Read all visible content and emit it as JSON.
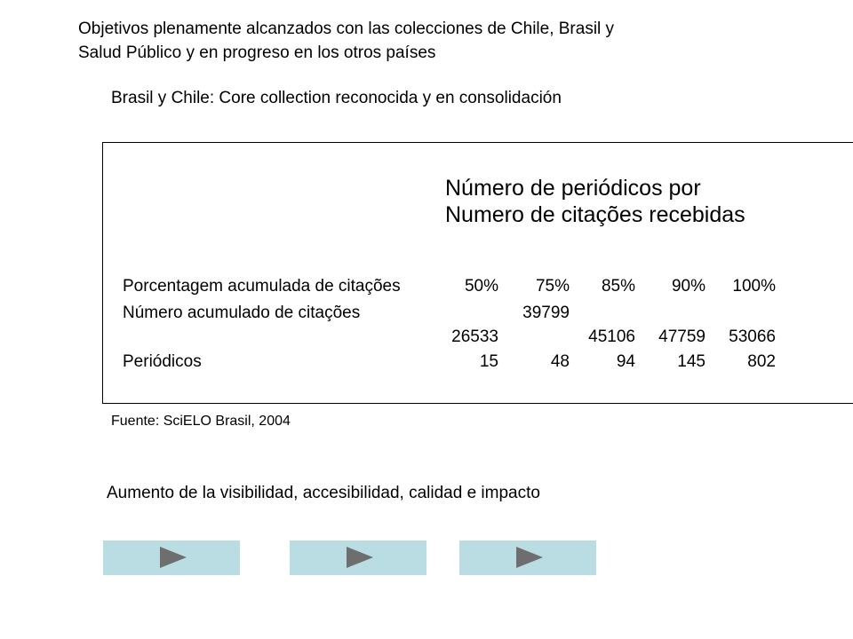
{
  "intro": {
    "line1": "Objetivos plenamente alcanzados con las colecciones de Chile, Brasil y",
    "line2": "Salud Público y en progreso en los otros países"
  },
  "subtitle": "Brasil y Chile: Core collection reconocida y en consolidación",
  "table": {
    "title_line1": "Número de periódicos por",
    "title_line2": "Numero de citações recebidas",
    "rows": [
      {
        "label": "Porcentagem acumulada de citações",
        "values": [
          "50%",
          "75%",
          "85%",
          "90%",
          "100%"
        ]
      },
      {
        "label": "Número acumulado de citações",
        "values": [
          "",
          "39799",
          "",
          "",
          ""
        ]
      },
      {
        "label": "",
        "values": [
          "26533",
          "",
          "45106",
          "47759",
          "53066"
        ]
      },
      {
        "label": "Periódicos",
        "values": [
          "15",
          "48",
          "94",
          "145",
          "802"
        ]
      }
    ]
  },
  "source": "Fuente: SciELO Brasil, 2004",
  "conclusion": "Aumento de la visibilidad, accesibilidad, calidad e impacto",
  "nav_buttons": [
    {
      "icon": "play-arrow-icon"
    },
    {
      "icon": "play-arrow-icon"
    },
    {
      "icon": "play-arrow-icon"
    }
  ],
  "colors": {
    "button_background": "#b9dde3",
    "arrow": "#6e6e6e"
  }
}
